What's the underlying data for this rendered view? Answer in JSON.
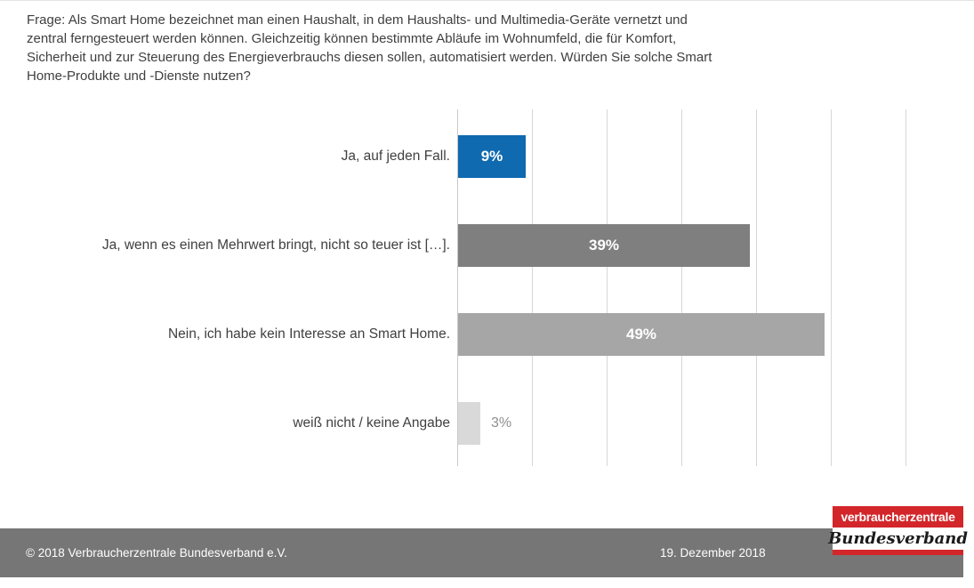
{
  "question": "Frage: Als Smart Home bezeichnet man einen Haushalt, in dem Haushalts- und Multimedia-Geräte vernetzt und zentral ferngesteuert werden können. Gleichzeitig können bestimmte Abläufe im Wohnumfeld, die für Komfort, Sicherheit und zur Steuerung des Energieverbrauchs diesen sollen, automatisiert werden. Würden Sie solche Smart Home-Produkte und -Dienste nutzen?",
  "chart_data": {
    "type": "bar",
    "orientation": "horizontal",
    "title": "",
    "categories": [
      "Ja, auf jeden Fall.",
      "Ja, wenn es einen Mehrwert bringt, nicht so teuer ist […].",
      "Nein, ich habe kein Interesse an Smart Home.",
      "weiß nicht / keine Angabe"
    ],
    "values": [
      9,
      39,
      49,
      3
    ],
    "value_labels": [
      "9%",
      "39%",
      "49%",
      "3%"
    ],
    "bar_colors": [
      "#0f6ab0",
      "#7f7f7f",
      "#a6a6a6",
      "#d9d9d9"
    ],
    "xlim": [
      0,
      60
    ],
    "gridline_step": 10,
    "grid": true,
    "legend": false,
    "xlabel": "",
    "ylabel": ""
  },
  "colors": {
    "accent_blue": "#0f6ab0",
    "footer_gray": "#767676",
    "logo_red": "#d2262b",
    "gridline": "#d7d7d7",
    "text": "#3f3f3f",
    "outside_value_label": "#8f8f8f"
  },
  "footer": {
    "copyright": "© 2018 Verbraucherzentrale Bundesverband e.V.",
    "date": "19. Dezember 2018"
  },
  "logo": {
    "line1": "verbraucherzentrale",
    "line2": "Bundesverband"
  }
}
